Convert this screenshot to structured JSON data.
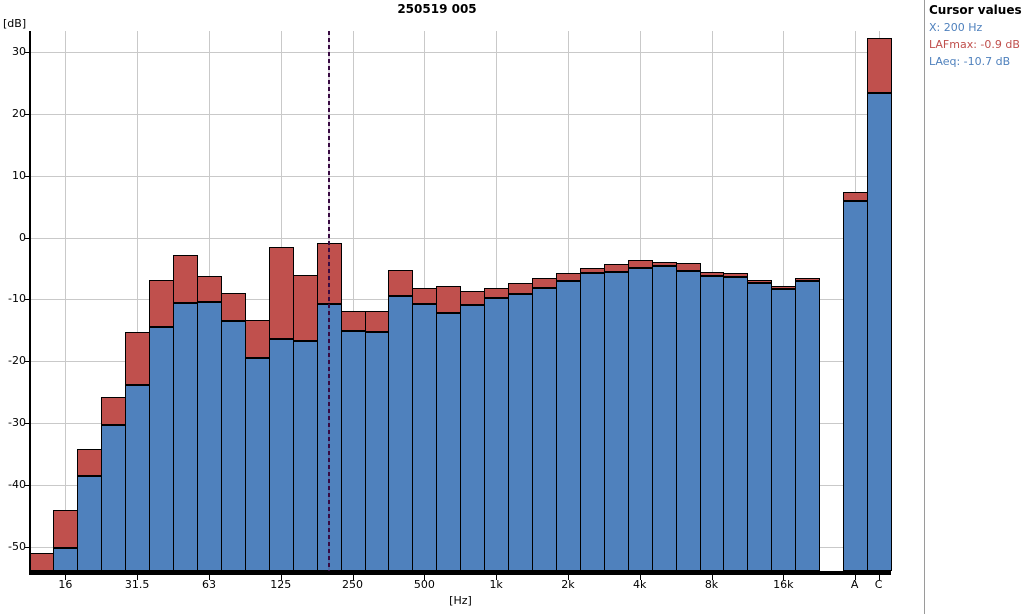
{
  "title": "250519 005",
  "y_axis": {
    "unit_label": "[dB]",
    "tick_labels": [
      "30",
      "20",
      "10",
      "0",
      "-10",
      "-20",
      "-30",
      "-40",
      "-50"
    ],
    "tick_values": [
      30,
      20,
      10,
      0,
      -10,
      -20,
      -30,
      -40,
      -50
    ]
  },
  "x_axis": {
    "unit_label": "[Hz]",
    "hz_tick_labels": [
      "16",
      "31.5",
      "63",
      "125",
      "250",
      "500",
      "1k",
      "2k",
      "4k",
      "8k",
      "16k"
    ],
    "total_tick_labels": [
      "A",
      "C"
    ]
  },
  "cursor_panel": {
    "title": "Cursor values",
    "x_line": "X: 200 Hz",
    "lafmax_line": "LAFmax: -0.9 dB",
    "laeq_line": "LAeq: -10.7 dB"
  },
  "colors": {
    "laeq_bar": "#4f81bd",
    "lafmax_bar": "#c0504d",
    "bar_border": "#000000",
    "grid": "#c9c9c9",
    "axis": "#000000",
    "cursor_line": "#380a42",
    "panel_blue_text": "#4f81bd",
    "panel_red_text": "#c0504d",
    "panel_separator": "#9a9a9a"
  },
  "chart_data": {
    "type": "bar",
    "title": "250519 005",
    "xlabel": "[Hz]",
    "ylabel": "[dB]",
    "ylim": [
      -54,
      33
    ],
    "grid": true,
    "legend_position": "none",
    "categories": [
      "12.5",
      "16",
      "20",
      "25",
      "31.5",
      "40",
      "50",
      "63",
      "80",
      "100",
      "125",
      "160",
      "200",
      "250",
      "315",
      "400",
      "500",
      "630",
      "800",
      "1k",
      "1.25k",
      "1.6k",
      "2k",
      "2.5k",
      "3.15k",
      "4k",
      "5k",
      "6.3k",
      "8k",
      "10k",
      "12.5k",
      "16k",
      "20k",
      "A",
      "C"
    ],
    "series": [
      {
        "name": "LAFmax",
        "color": "#c0504d",
        "values": [
          -50.9,
          -44.0,
          -34.2,
          -25.7,
          -15.3,
          -6.9,
          -2.8,
          -6.2,
          -9.0,
          -13.3,
          -1.5,
          -6.0,
          -0.9,
          -11.9,
          -11.9,
          -5.3,
          -8.2,
          -7.9,
          -8.6,
          -8.2,
          -7.4,
          -6.5,
          -5.7,
          -4.9,
          -4.3,
          -3.6,
          -3.9,
          -4.2,
          -5.5,
          -5.7,
          -6.9,
          -7.9,
          -6.5,
          7.4,
          32.3
        ]
      },
      {
        "name": "LAeq",
        "color": "#4f81bd",
        "values": [
          -55.0,
          -50.1,
          -38.6,
          -30.3,
          -23.8,
          -14.4,
          -10.6,
          -10.4,
          -13.5,
          -19.5,
          -16.4,
          -16.8,
          -10.7,
          -15.1,
          -15.2,
          -9.4,
          -10.8,
          -12.2,
          -10.9,
          -9.7,
          -9.1,
          -8.1,
          -7.1,
          -5.8,
          -5.5,
          -4.9,
          -4.6,
          -5.4,
          -6.2,
          -6.4,
          -7.4,
          -8.3,
          -7.0,
          5.9,
          23.3
        ]
      }
    ],
    "cursor": {
      "x_category": "200",
      "x_label": "200 Hz",
      "LAFmax_dB": -0.9,
      "LAeq_dB": -10.7
    }
  }
}
